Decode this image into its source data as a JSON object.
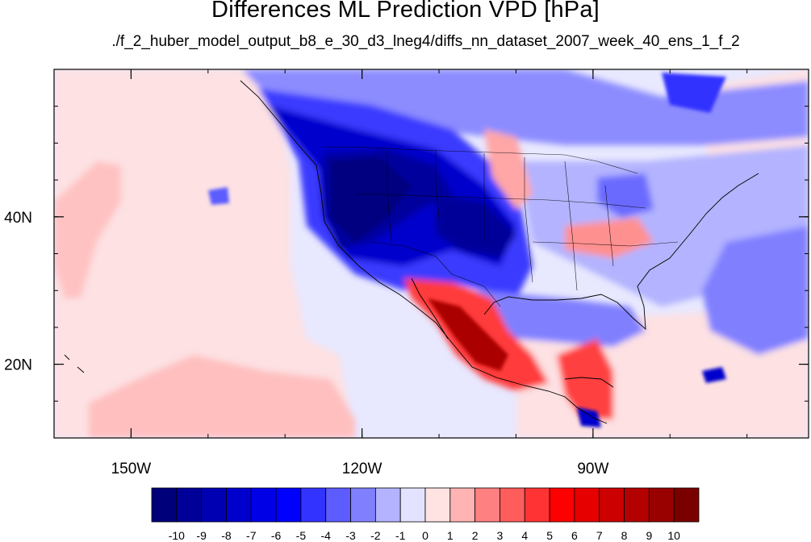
{
  "title": "Differences ML Prediction VPD [hPa]",
  "subtitle": "./f_2_huber_model_output_b8_e_30_d3_lneg4/diffs_nn_dataset_2007_week_40_ens_1_f_2",
  "map": {
    "projection": "cylindrical-equidistant",
    "lon_range": [
      -160,
      -62
    ],
    "lat_range": [
      10,
      60
    ]
  },
  "lon_ticks": [
    {
      "value": -150,
      "label": "150W"
    },
    {
      "value": -120,
      "label": "120W"
    },
    {
      "value": -90,
      "label": "90W"
    }
  ],
  "lat_ticks": [
    {
      "value": 40,
      "label": "40N"
    },
    {
      "value": 20,
      "label": "20N"
    }
  ],
  "colorbar": {
    "labels": [
      "-10",
      "-9",
      "-8",
      "-7",
      "-6",
      "-5",
      "-4",
      "-3",
      "-2",
      "-1",
      "0",
      "1",
      "2",
      "3",
      "4",
      "5",
      "6",
      "7",
      "8",
      "9",
      "10"
    ],
    "colors": [
      "#00007a",
      "#000099",
      "#0000b3",
      "#0000cc",
      "#0000e6",
      "#0000ff",
      "#3333ff",
      "#5c5cff",
      "#8080ff",
      "#b3b3ff",
      "#e3e3ff",
      "#ffe3e3",
      "#ffb3b3",
      "#ff8080",
      "#ff5c5c",
      "#ff3333",
      "#ff0000",
      "#e60000",
      "#cc0000",
      "#b30000",
      "#990000",
      "#7a0000"
    ]
  }
}
